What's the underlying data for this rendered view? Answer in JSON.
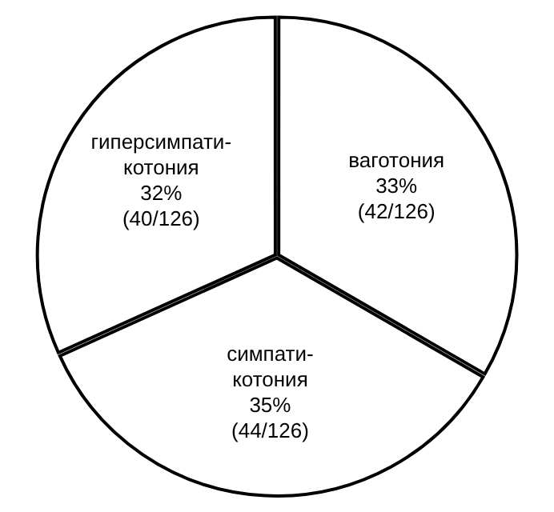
{
  "chart_data": {
    "type": "pie",
    "categories": [
      "ваготония",
      "симпати-\nкотония",
      "гиперсимпати-\nкотония"
    ],
    "values": [
      42,
      44,
      40
    ],
    "value_labels": [
      "33%\n(42/126)",
      "35%\n(44/126)",
      "32%\n(40/126)"
    ],
    "colors": [
      "#ffffff",
      "#ffffff",
      "#ffffff"
    ],
    "legend": false
  }
}
